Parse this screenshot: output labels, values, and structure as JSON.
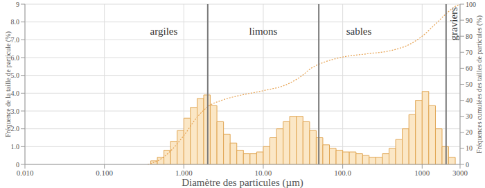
{
  "chart_data": {
    "type": "histogram",
    "xlabel": "Diamètre des particules (µm)",
    "ylabel": "Fréquence de la taille de particule (%)",
    "y2label": "Fréquences cumulées des tailles de particules (%)",
    "log": "x",
    "grid": true,
    "xlim": [
      0.01,
      3000
    ],
    "xticks": [
      {
        "value": 0.01,
        "label": "0.010"
      },
      {
        "value": 0.1,
        "label": "0.100"
      },
      {
        "value": 1,
        "label": "1.000"
      },
      {
        "value": 10,
        "label": "10.00"
      },
      {
        "value": 100,
        "label": "100.0"
      },
      1000,
      3000
    ],
    "ylim": [
      0,
      9
    ],
    "yticks": [
      0,
      {
        "value": 1,
        "label": "1.0"
      },
      {
        "value": 2,
        "label": "2.0"
      },
      {
        "value": 3,
        "label": "3.0"
      },
      {
        "value": 4,
        "label": "4.0"
      },
      {
        "value": 5,
        "label": "5.0"
      },
      {
        "value": 6,
        "label": "6.0"
      },
      {
        "value": 7,
        "label": "7.0"
      },
      {
        "value": 8,
        "label": "8.0"
      },
      9
    ],
    "y2lim": [
      0,
      100
    ],
    "y2ticks": [
      0,
      10,
      20,
      30,
      40,
      50,
      60,
      70,
      80,
      90,
      100
    ],
    "bins": [
      0.383,
      0.464,
      0.562,
      0.681,
      0.825,
      1,
      1.21,
      1.47,
      1.78,
      2.15,
      2.61,
      3.16,
      3.83,
      4.64,
      5.62,
      6.81,
      8.25,
      10,
      12.1,
      14.7,
      17.8,
      21.5,
      26.1,
      31.6,
      38.3,
      46.4,
      56.2,
      68.1,
      82.5,
      100,
      121,
      147,
      178,
      215,
      261,
      316,
      383,
      464,
      562,
      681,
      825,
      1000,
      1210,
      1470,
      1780,
      2150,
      2610
    ],
    "series": [
      {
        "type": "bar",
        "color": "#e0a552",
        "values": [
          0.2,
          0.4,
          0.8,
          1.3,
          1.9,
          2.6,
          3.2,
          3.7,
          3.9,
          3.3,
          2.4,
          1.7,
          1.2,
          0.8,
          0.6,
          0.6,
          0.7,
          1.0,
          1.5,
          2.0,
          2.4,
          2.7,
          2.7,
          2.4,
          1.9,
          1.5,
          1.1,
          0.9,
          0.8,
          0.7,
          0.7,
          0.6,
          0.5,
          0.4,
          0.4,
          0.6,
          0.9,
          1.4,
          2.0,
          2.8,
          3.6,
          4.1,
          3.3,
          2.0,
          1.0,
          0.4
        ]
      },
      {
        "type": "line",
        "axis": "y2",
        "color": "#e6a04e",
        "line_style": "dotted",
        "x": [
          0.35,
          0.5,
          0.7,
          1,
          1.5,
          2,
          3,
          5,
          10,
          20,
          30,
          40,
          60,
          100,
          200,
          400,
          700,
          1000,
          1500,
          2000,
          2500,
          3000
        ],
        "values": [
          0,
          3,
          9,
          18,
          30,
          36,
          40,
          43,
          46,
          50,
          55,
          60,
          64,
          67,
          69,
          71,
          75,
          80,
          88,
          94,
          98,
          100
        ]
      }
    ],
    "class_limits": [
      2,
      50,
      2000
    ],
    "annotations": [
      {
        "text": "argiles",
        "x": 0.56,
        "y": 7.5
      },
      {
        "text": "limons",
        "x": 10,
        "y": 7.5
      },
      {
        "text": "sables",
        "x": 160,
        "y": 7.5
      },
      {
        "text": "graviers",
        "x": 2500,
        "y": 7.9
      }
    ]
  }
}
